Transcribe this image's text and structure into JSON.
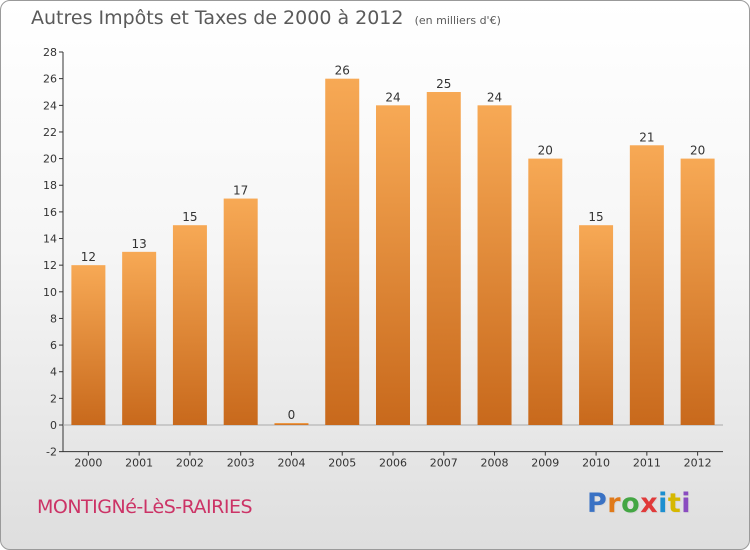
{
  "header": {
    "title": "Autres Impôts et Taxes de 2000 à 2012",
    "unit": "(en milliers d'€)"
  },
  "footer": {
    "commune": "MONTIGNé-LèS-RAIRIES",
    "brand": "Proxiti",
    "brand_colors": [
      "#3a72c4",
      "#e07a1a",
      "#44a644",
      "#e03a3a",
      "#1c8fd0",
      "#d6b800",
      "#8a4cc0"
    ]
  },
  "chart_data": {
    "type": "bar",
    "categories": [
      "2000",
      "2001",
      "2002",
      "2003",
      "2004",
      "2005",
      "2006",
      "2007",
      "2008",
      "2009",
      "2010",
      "2011",
      "2012"
    ],
    "values": [
      12,
      13,
      15,
      17,
      0,
      26,
      24,
      25,
      24,
      20,
      15,
      21,
      20
    ],
    "data_labels": [
      "12",
      "13",
      "15",
      "17",
      "0",
      "26",
      "24",
      "25",
      "24",
      "20",
      "15",
      "21",
      "20"
    ],
    "yticks": [
      -2,
      0,
      2,
      4,
      6,
      8,
      10,
      12,
      14,
      16,
      18,
      20,
      22,
      24,
      26,
      28
    ],
    "ylim": [
      -2,
      28
    ],
    "grid": false,
    "bar_color_top": "#f7a955",
    "bar_color_bottom": "#c8691c"
  }
}
